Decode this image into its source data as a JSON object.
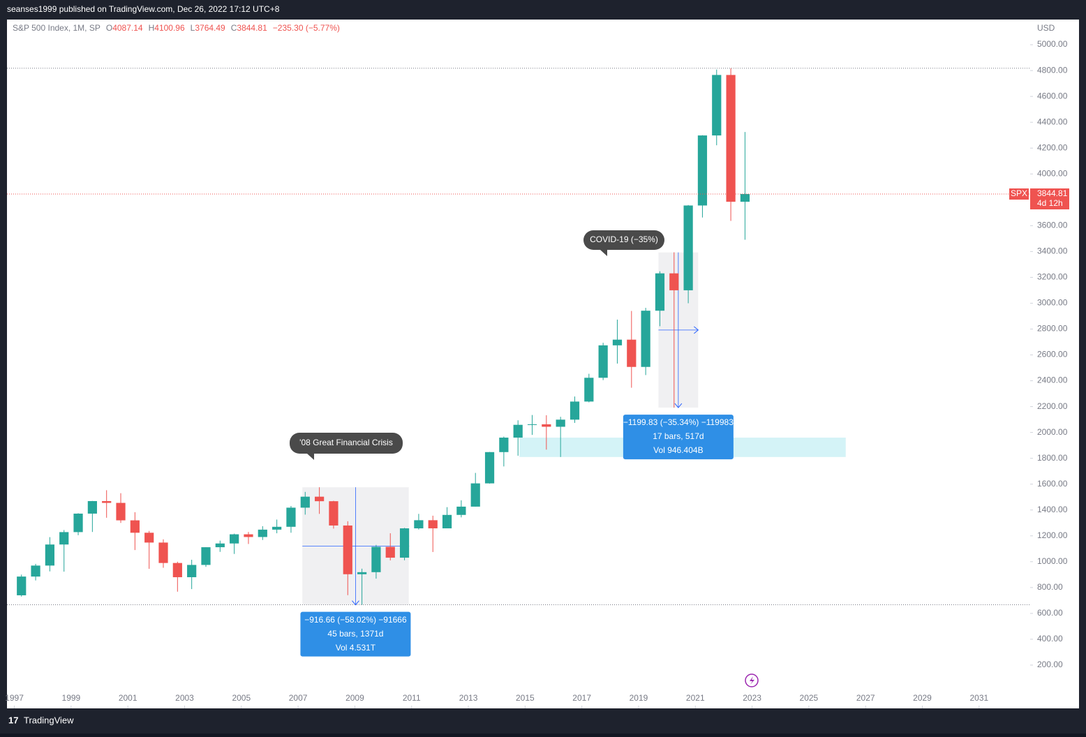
{
  "header": "seanses1999 published on TradingView.com, Dec 26, 2022 17:12 UTC+8",
  "footer": "TradingView",
  "chart_data": {
    "type": "candlestick",
    "legend": {
      "name": "S&P 500 Index, 1M, SP",
      "fields": [
        {
          "label": "O",
          "value": 4087.14
        },
        {
          "label": "H",
          "value": 4100.96
        },
        {
          "label": "L",
          "value": 3764.49
        },
        {
          "label": "C",
          "value": 3844.81
        }
      ],
      "change": "−235.30 (−5.77%)"
    },
    "currency": "USD",
    "up_color": "#26a69a",
    "down_color": "#ef5350",
    "x": [
      1997.25,
      1997.75,
      1998.25,
      1998.75,
      1999.25,
      1999.75,
      2000.25,
      2000.75,
      2001.25,
      2001.75,
      2002.25,
      2002.75,
      2003.25,
      2003.75,
      2004.25,
      2004.75,
      2005.25,
      2005.75,
      2006.25,
      2006.75,
      2007.25,
      2007.75,
      2008.25,
      2008.75,
      2009.25,
      2009.75,
      2010.25,
      2010.75,
      2011.25,
      2011.75,
      2012.25,
      2012.75,
      2013.25,
      2013.75,
      2014.25,
      2014.75,
      2015.25,
      2015.75,
      2016.25,
      2016.75,
      2017.25,
      2017.75,
      2018.25,
      2018.75,
      2019.25,
      2019.75,
      2020.25,
      2020.75,
      2021.25,
      2021.75,
      2022.25,
      2022.75
    ],
    "open": [
      740,
      885,
      970,
      1133,
      1229,
      1372,
      1469,
      1455,
      1320,
      1224,
      1148,
      990,
      880,
      975,
      1112,
      1141,
      1212,
      1191,
      1248,
      1270,
      1418,
      1503,
      1468,
      1280,
      903,
      919,
      1115,
      1031,
      1258,
      1321,
      1258,
      1362,
      1426,
      1606,
      1848,
      1960,
      2059,
      2063,
      2044,
      2099,
      2239,
      2423,
      2674,
      2718,
      2507,
      2942,
      3231,
      3100,
      3756,
      4298,
      4766,
      3785
    ],
    "high": [
      900,
      983,
      1190,
      1245,
      1375,
      1470,
      1553,
      1530,
      1383,
      1238,
      1173,
      1000,
      1015,
      1112,
      1163,
      1217,
      1230,
      1275,
      1326,
      1431,
      1540,
      1576,
      1471,
      1313,
      946,
      1130,
      1220,
      1262,
      1370,
      1356,
      1422,
      1475,
      1687,
      1849,
      1968,
      2094,
      2135,
      2133,
      2121,
      2278,
      2454,
      2694,
      2873,
      2940,
      2964,
      3247,
      3394,
      3760,
      4300,
      4808,
      4818,
      4325
    ],
    "low": [
      730,
      855,
      925,
      923,
      1205,
      1230,
      1340,
      1300,
      1090,
      945,
      953,
      768,
      788,
      960,
      1076,
      1060,
      1137,
      1168,
      1220,
      1224,
      1364,
      1370,
      1256,
      741,
      667,
      869,
      1010,
      1011,
      1249,
      1075,
      1259,
      1343,
      1426,
      1604,
      1737,
      1820,
      1981,
      1867,
      1810,
      2074,
      2233,
      2405,
      2533,
      2346,
      2444,
      2822,
      2192,
      3000,
      3663,
      4222,
      3637,
      3491
    ],
    "close": [
      885,
      970,
      1133,
      1229,
      1372,
      1469,
      1455,
      1320,
      1224,
      1148,
      990,
      880,
      975,
      1112,
      1141,
      1212,
      1191,
      1248,
      1270,
      1418,
      1503,
      1468,
      1280,
      903,
      919,
      1115,
      1031,
      1258,
      1321,
      1258,
      1362,
      1426,
      1606,
      1848,
      1960,
      2059,
      2063,
      2044,
      2099,
      2239,
      2423,
      2674,
      2718,
      2507,
      2942,
      3231,
      3100,
      3756,
      4298,
      4766,
      3785,
      3845
    ],
    "xlim": [
      1996.74,
      2032.8
    ],
    "ylim": [
      -135,
      5184
    ],
    "xticks": [
      1997,
      1999,
      2001,
      2003,
      2005,
      2007,
      2009,
      2011,
      2013,
      2015,
      2017,
      2019,
      2021,
      2023,
      2025,
      2027,
      2029,
      2031
    ],
    "yticks": [
      {
        "value": 200,
        "label": "200.00"
      },
      {
        "value": 400,
        "label": "400.00"
      },
      {
        "value": 600,
        "label": "600.00"
      },
      {
        "value": 800,
        "label": "800.00"
      },
      {
        "value": 1000,
        "label": "1000.00"
      },
      {
        "value": 1200,
        "label": "1200.00"
      },
      {
        "value": 1400,
        "label": "1400.00"
      },
      {
        "value": 1600,
        "label": "1600.00"
      },
      {
        "value": 1800,
        "label": "1800.00"
      },
      {
        "value": 2000,
        "label": "2000.00"
      },
      {
        "value": 2200,
        "label": "2200.00"
      },
      {
        "value": 2400,
        "label": "2400.00"
      },
      {
        "value": 2600,
        "label": "2600.00"
      },
      {
        "value": 2800,
        "label": "2800.00"
      },
      {
        "value": 3000,
        "label": "3000.00"
      },
      {
        "value": 3200,
        "label": "3200.00"
      },
      {
        "value": 3400,
        "label": "3400.00"
      },
      {
        "value": 3600,
        "label": "3600.00"
      },
      {
        "value": 3800,
        "label": "3800.00"
      },
      {
        "value": 4000,
        "label": "4000.00"
      },
      {
        "value": 4200,
        "label": "4200.00"
      },
      {
        "value": 4400,
        "label": "4400.00"
      },
      {
        "value": 4600,
        "label": "4600.00"
      },
      {
        "value": 4800,
        "label": "4800.00"
      },
      {
        "value": 5000,
        "label": "5000.00"
      }
    ],
    "price_line": {
      "symbol": "SPX",
      "value": 3844.81,
      "countdown": "4d 12h",
      "color": "#ef5350"
    },
    "range_lines": [
      4818,
      667
    ],
    "zone": {
      "x": [
        2014.8,
        2026.3
      ],
      "y": [
        1810,
        1960
      ],
      "color": "#d4f3f7"
    },
    "measures": [
      {
        "x": [
          2007.15,
          2010.9
        ],
        "y": [
          666,
          1576
        ],
        "lines": [
          "−916.66 (−58.02%) −91666",
          "45 bars, 1371d",
          "Vol 4.531T"
        ]
      },
      {
        "x": [
          2019.7,
          2021.1
        ],
        "y": [
          2192,
          3393
        ],
        "lines": [
          "−1199.83 (−35.34%) −119983",
          "17 bars, 517d",
          "Vol 946.404B"
        ]
      }
    ],
    "callouts": [
      "'08 Great Financial Crisis",
      "COVID-19 (−35%)"
    ]
  }
}
